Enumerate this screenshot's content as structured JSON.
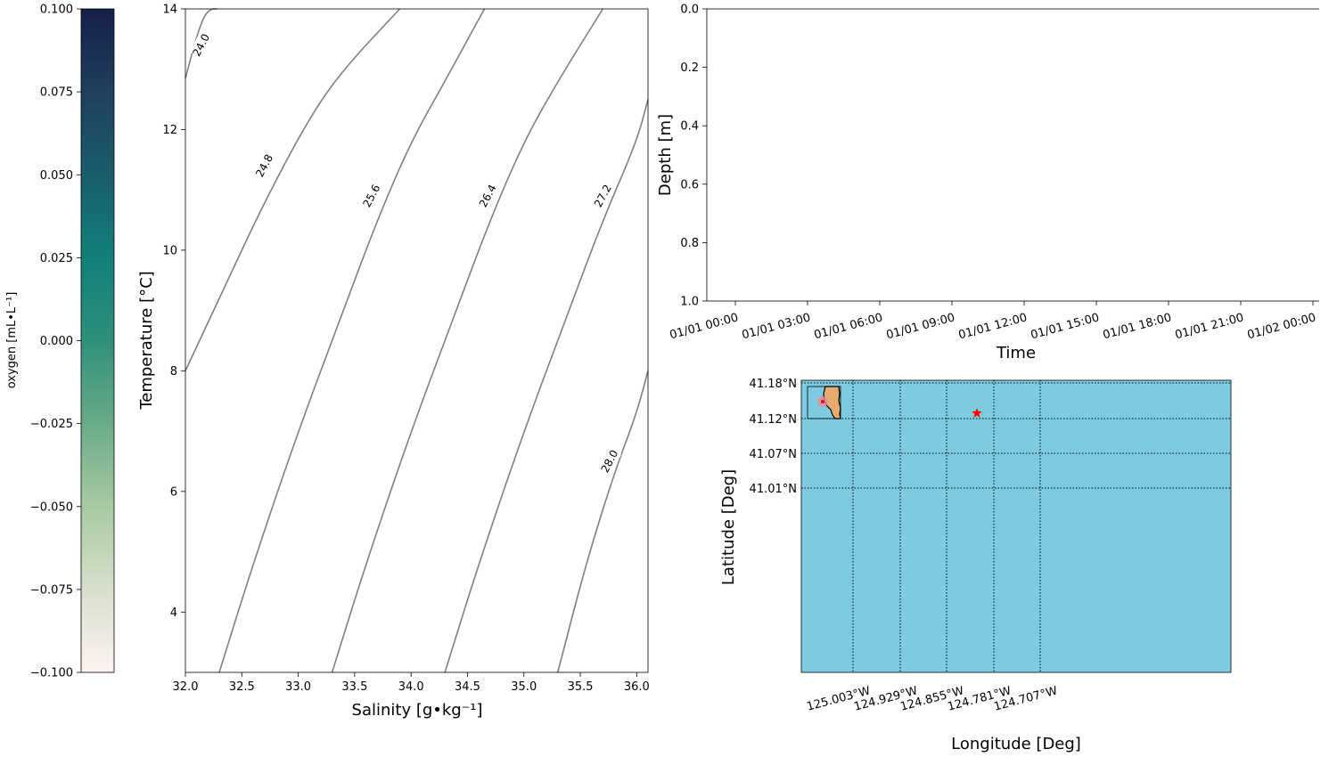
{
  "chart_data": [
    {
      "id": "colorbar",
      "type": "colorbar",
      "label": "oxygen [mL•L⁻¹]",
      "range": [
        -0.1,
        0.1
      ],
      "ticks": [
        "0.100",
        "0.075",
        "0.050",
        "0.025",
        "0.000",
        "−0.025",
        "−0.050",
        "−0.075",
        "−0.100"
      ],
      "tick_values": [
        0.1,
        0.075,
        0.05,
        0.025,
        0.0,
        -0.025,
        -0.05,
        -0.075,
        -0.1
      ],
      "colors": [
        "#fdf3f2",
        "#d9dfcc",
        "#a8c9a4",
        "#6aab88",
        "#2f907b",
        "#127f79",
        "#1a5d6b",
        "#1f3f5c",
        "#161f49"
      ]
    },
    {
      "id": "ts-diagram",
      "type": "line",
      "xlabel": "Salinity [g•kg⁻¹]",
      "ylabel": "Temperature [°C]",
      "xlim": [
        32.0,
        36.1
      ],
      "ylim": [
        3.0,
        14.0
      ],
      "xticks": [
        "32.0",
        "32.5",
        "33.0",
        "33.5",
        "34.0",
        "34.5",
        "35.0",
        "35.5",
        "36.0"
      ],
      "xtick_values": [
        32.0,
        32.5,
        33.0,
        33.5,
        34.0,
        34.5,
        35.0,
        35.5,
        36.0
      ],
      "yticks": [
        "4",
        "6",
        "8",
        "10",
        "12",
        "14"
      ],
      "ytick_values": [
        4,
        6,
        8,
        10,
        12,
        14
      ],
      "grid": false,
      "contour_color": "#808080",
      "series": [
        {
          "name": "24.0",
          "x": [
            32.0,
            32.1,
            32.17,
            32.23,
            32.28
          ],
          "y": [
            12.85,
            13.55,
            13.9,
            14.0,
            14.0
          ],
          "label_at": [
            32.14,
            13.4
          ]
        },
        {
          "name": "24.8",
          "x": [
            32.0,
            32.3,
            32.7,
            33.1,
            33.4,
            33.9
          ],
          "y": [
            8.0,
            9.2,
            10.8,
            12.2,
            13.0,
            14.0
          ],
          "label_at": [
            32.7,
            11.4
          ]
        },
        {
          "name": "25.6",
          "x": [
            32.3,
            32.6,
            33.0,
            33.4,
            33.7,
            34.0,
            34.3,
            34.65
          ],
          "y": [
            3.0,
            4.8,
            7.0,
            9.0,
            10.5,
            11.8,
            12.8,
            14.0
          ],
          "label_at": [
            33.65,
            10.9
          ]
        },
        {
          "name": "26.4",
          "x": [
            33.3,
            33.6,
            34.0,
            34.4,
            34.7,
            35.0,
            35.3,
            35.7
          ],
          "y": [
            3.0,
            4.8,
            7.0,
            9.0,
            10.5,
            11.8,
            12.8,
            14.0
          ],
          "label_at": [
            34.68,
            10.9
          ]
        },
        {
          "name": "27.2",
          "x": [
            34.3,
            34.6,
            35.0,
            35.4,
            35.7,
            36.0,
            36.1
          ],
          "y": [
            3.0,
            4.8,
            7.0,
            9.0,
            10.5,
            11.8,
            12.5
          ],
          "label_at": [
            35.7,
            10.9
          ]
        },
        {
          "name": "28.0",
          "x": [
            35.3,
            35.55,
            35.8,
            36.0,
            36.1
          ],
          "y": [
            3.0,
            4.8,
            6.3,
            7.3,
            8.0
          ],
          "label_at": [
            35.76,
            6.5
          ]
        }
      ]
    },
    {
      "id": "depth-time",
      "type": "line",
      "xlabel": "Time",
      "ylabel": "Depth [m]",
      "ylim": [
        0.0,
        1.0
      ],
      "yticks": [
        "0.0",
        "0.2",
        "0.4",
        "0.6",
        "0.8",
        "1.0"
      ],
      "ytick_values": [
        0.0,
        0.2,
        0.4,
        0.6,
        0.8,
        1.0
      ],
      "y_inverted": true,
      "xticks": [
        "01/01 00:00",
        "01/01 03:00",
        "01/01 06:00",
        "01/01 09:00",
        "01/01 12:00",
        "01/01 15:00",
        "01/01 18:00",
        "01/01 21:00",
        "01/02 00:00"
      ],
      "series": []
    },
    {
      "id": "location-map",
      "type": "map",
      "xlabel": "Longitude [Deg]",
      "ylabel": "Latitude [Deg]",
      "lat_ticks": [
        "41.18°N",
        "41.12°N",
        "41.07°N",
        "41.01°N"
      ],
      "lon_ticks": [
        "125.003°W",
        "124.929°W",
        "124.855°W",
        "124.781°W",
        "124.707°W"
      ],
      "ocean_color": "#7ecbe1",
      "land_color": "#e6ac6e",
      "station_color": "#ff0000",
      "station_marker": "star"
    }
  ]
}
